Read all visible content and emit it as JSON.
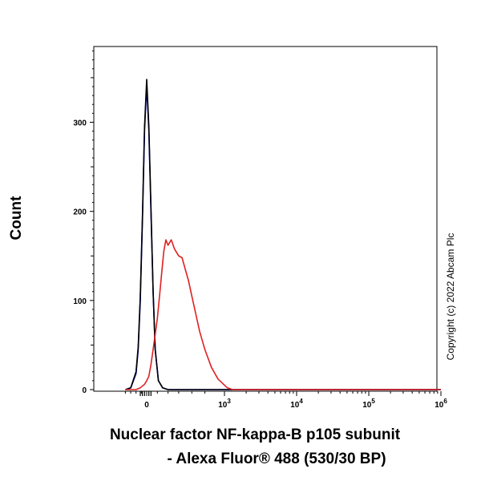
{
  "chart_data": {
    "type": "line",
    "title": "",
    "ylabel": "Count",
    "xlabel_line1": "Nuclear factor NF-kappa-B p105 subunit",
    "xlabel_line2": "- Alexa Fluor® 488 (530/30 BP)",
    "x_scale": "biexponential",
    "ylim": [
      0,
      385
    ],
    "yticks": [
      0,
      100,
      200,
      300
    ],
    "ytick_labels": [
      "0",
      "100",
      "200",
      "300"
    ],
    "xticks": [
      0,
      1000,
      10000,
      100000,
      1000000
    ],
    "xtick_labels": [
      {
        "base": "0",
        "exp": ""
      },
      {
        "base": "10",
        "exp": "3"
      },
      {
        "base": "10",
        "exp": "4"
      },
      {
        "base": "10",
        "exp": "5"
      },
      {
        "base": "10",
        "exp": "6"
      }
    ],
    "grid": false,
    "legend": "none",
    "series": [
      {
        "color": "#0000cc",
        "x": [
          -200,
          -150,
          -100,
          -80,
          -60,
          -40,
          -20,
          0,
          20,
          40,
          60,
          80,
          110,
          150,
          200,
          300,
          1000000
        ],
        "y": [
          0,
          2,
          18,
          45,
          100,
          190,
          290,
          342,
          290,
          200,
          110,
          45,
          10,
          2,
          0,
          0,
          0
        ]
      },
      {
        "color": "#000000",
        "x": [
          -200,
          -150,
          -100,
          -80,
          -60,
          -40,
          -20,
          0,
          20,
          40,
          60,
          80,
          110,
          150,
          200,
          300,
          1000000
        ],
        "y": [
          0,
          2,
          20,
          48,
          105,
          195,
          295,
          348,
          295,
          205,
          110,
          45,
          10,
          2,
          0,
          0,
          0
        ]
      },
      {
        "color": "#e02020",
        "x": [
          -200,
          -100,
          -60,
          -20,
          0,
          20,
          40,
          60,
          80,
          100,
          120,
          140,
          160,
          180,
          200,
          230,
          260,
          300,
          350,
          400,
          450,
          500,
          560,
          620,
          700,
          800,
          900,
          1000,
          1100,
          1300,
          1600,
          1000000
        ],
        "y": [
          0,
          0,
          2,
          6,
          10,
          15,
          28,
          45,
          62,
          80,
          105,
          130,
          155,
          168,
          162,
          168,
          158,
          150,
          148,
          135,
          122,
          105,
          85,
          65,
          45,
          25,
          12,
          5,
          2,
          0,
          0,
          0
        ]
      }
    ]
  },
  "copyright": "Copyright (c) 2022 Abcam Plc"
}
